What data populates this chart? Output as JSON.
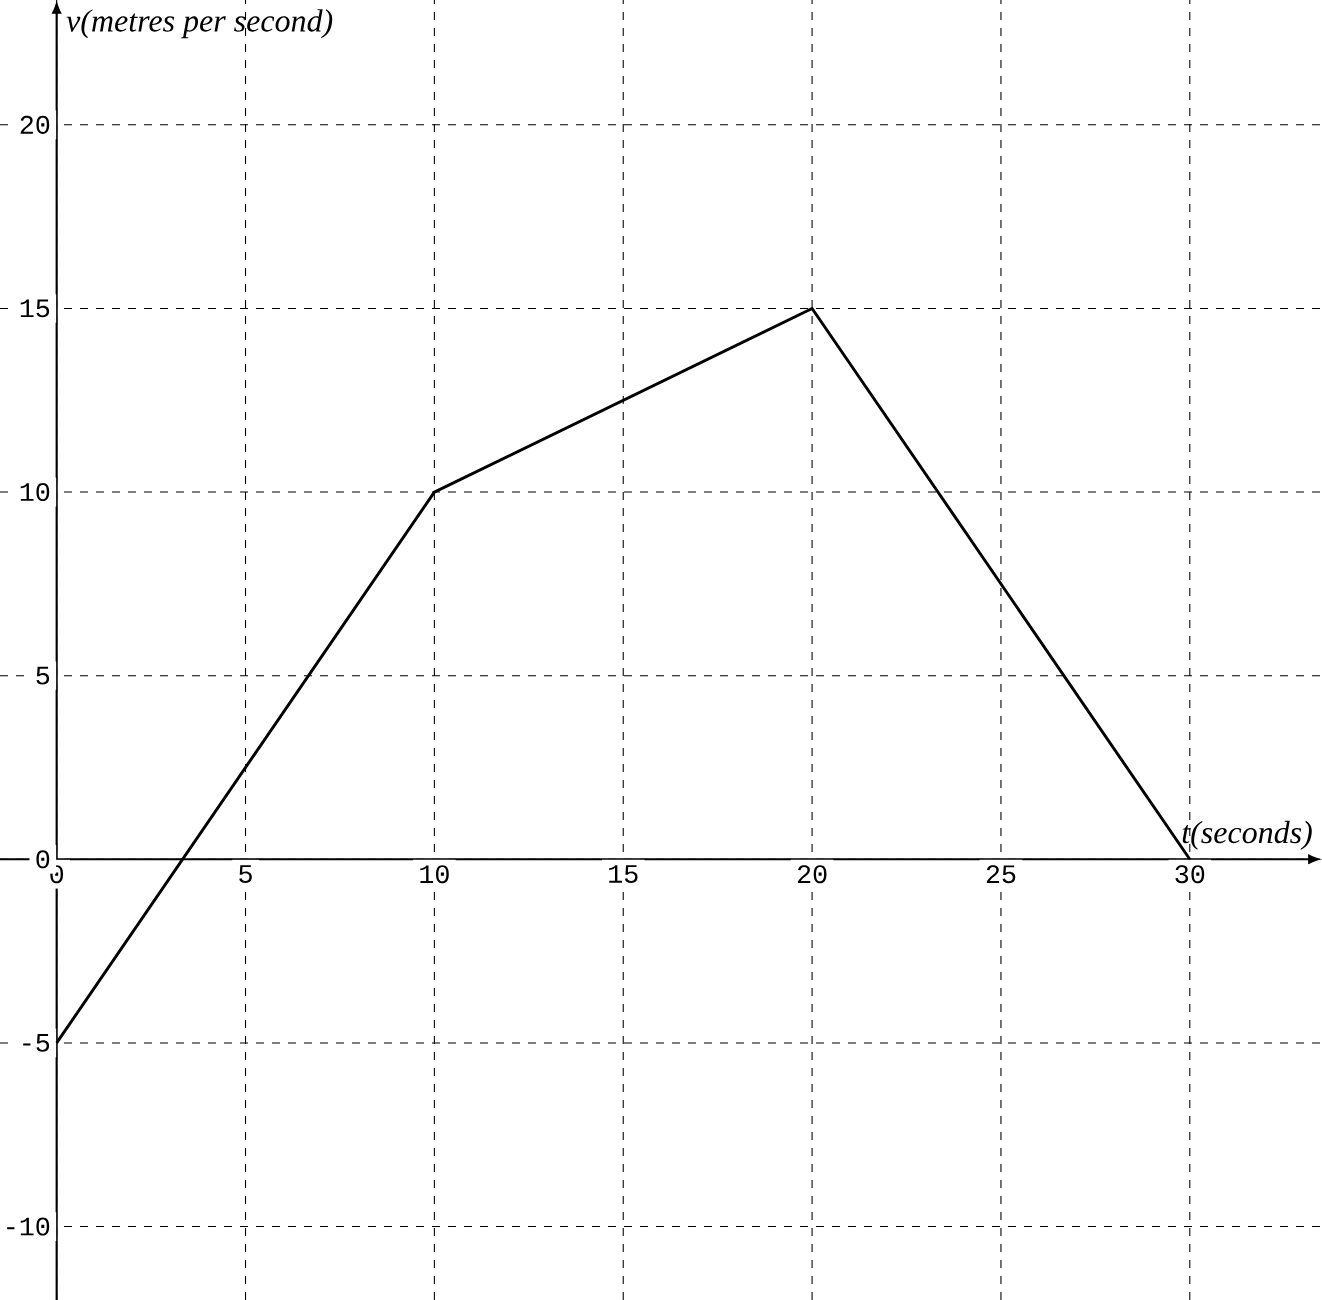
{
  "chart_data": {
    "type": "line",
    "xlabel": "t(seconds)",
    "ylabel": "v(metres per second)",
    "x": [
      0,
      10,
      20,
      30
    ],
    "series": [
      {
        "color": "#000000",
        "values": [
          -5,
          10,
          15,
          0
        ]
      }
    ],
    "xlim": [
      -1.5,
      33.5
    ],
    "ylim": [
      -12,
      23.4
    ],
    "xticks": [
      0,
      5,
      10,
      15,
      20,
      25,
      30
    ],
    "yticks": [
      -10,
      -5,
      0,
      5,
      10,
      15,
      20
    ],
    "grid": true,
    "marker": "none",
    "line_style": "solid"
  }
}
